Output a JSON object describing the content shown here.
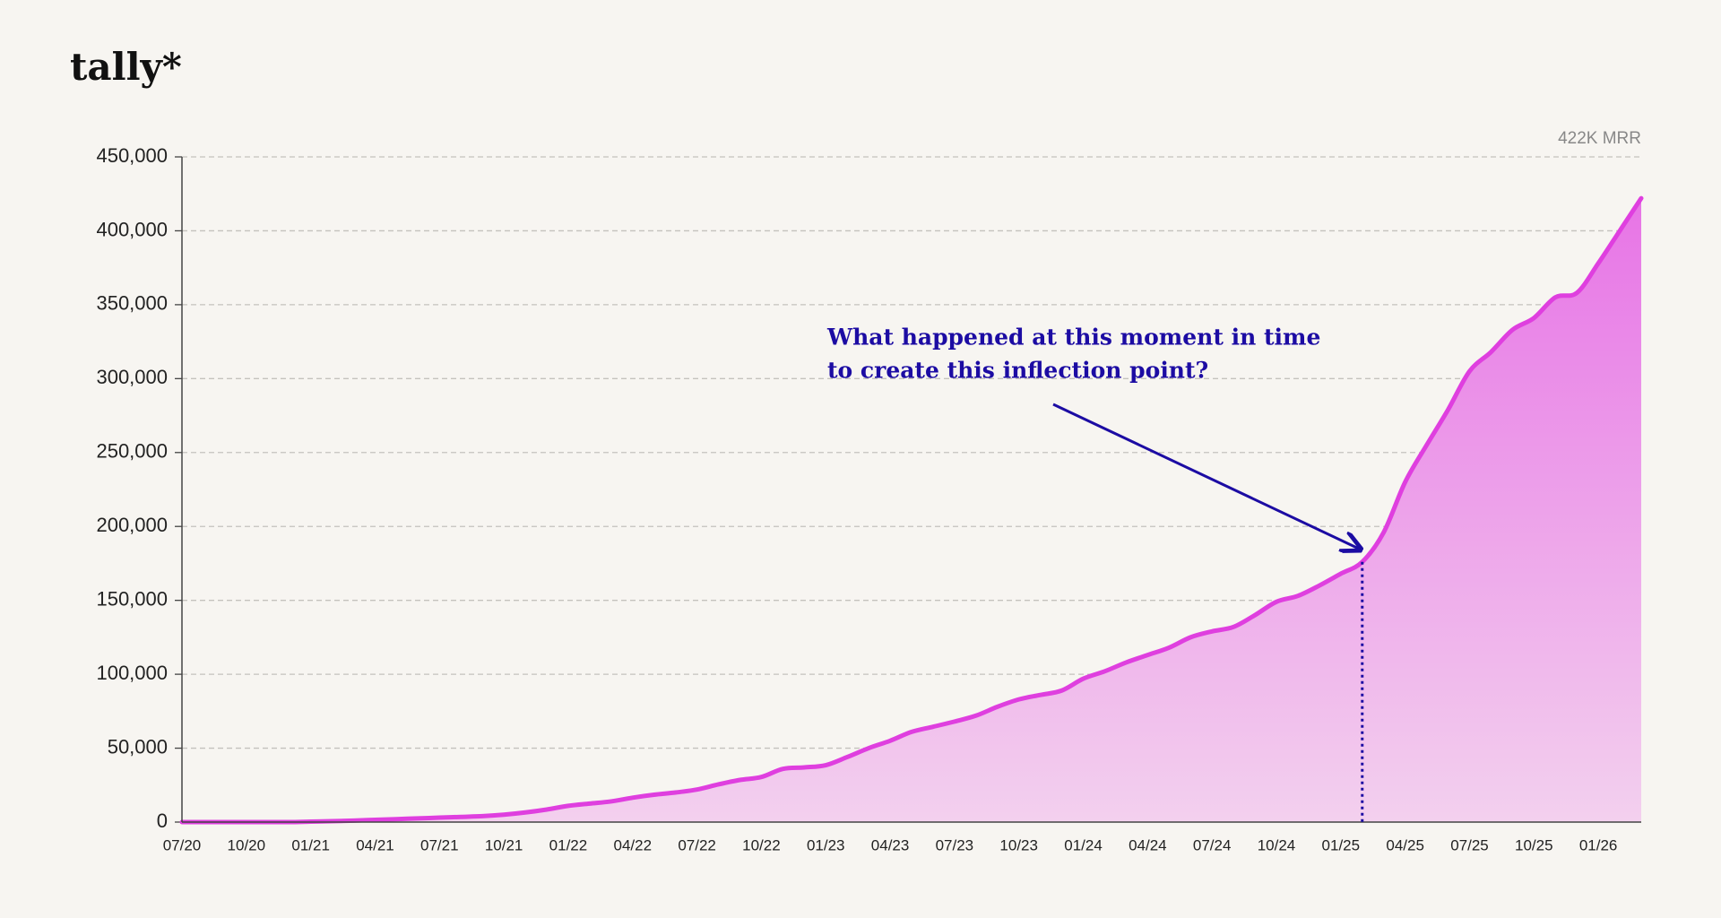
{
  "title": "tally*",
  "chart_data": {
    "type": "area",
    "corner_label": "422K MRR",
    "annotation": [
      "What happened at this moment in time",
      "to create this inflection point?"
    ],
    "categories": [
      "07/20",
      null,
      null,
      "10/20",
      null,
      null,
      "01/21",
      null,
      null,
      "04/21",
      null,
      null,
      "07/21",
      null,
      null,
      "10/21",
      null,
      null,
      "01/22",
      null,
      null,
      "04/22",
      null,
      null,
      "07/22",
      null,
      null,
      "10/22",
      null,
      null,
      "01/23",
      null,
      null,
      "04/23",
      null,
      null,
      "07/23",
      null,
      null,
      "10/23",
      null,
      null,
      "01/24",
      null,
      null,
      "04/24",
      null,
      null,
      "07/24",
      null,
      null,
      "10/24",
      null,
      null,
      "01/25",
      null,
      null,
      "04/25",
      null,
      null,
      "07/25",
      null,
      null,
      "10/25",
      null,
      null,
      "01/26",
      null,
      null
    ],
    "series": [
      {
        "name": "MRR",
        "color": "#df3fdf",
        "values": [
          0,
          0,
          0,
          0,
          0,
          0,
          300,
          600,
          1000,
          1500,
          2000,
          2500,
          3000,
          3500,
          4000,
          5000,
          6500,
          8500,
          11000,
          12500,
          14000,
          16500,
          18500,
          20000,
          22000,
          25500,
          28500,
          30500,
          36000,
          37000,
          38500,
          44000,
          50000,
          55000,
          61000,
          64500,
          68000,
          72000,
          78000,
          83000,
          86000,
          89000,
          97000,
          102000,
          108000,
          113000,
          118000,
          125000,
          129000,
          132000,
          140000,
          149000,
          153000,
          160000,
          168000,
          176000,
          196000,
          230000,
          255000,
          279000,
          305000,
          318000,
          333000,
          341000,
          355000,
          358000,
          378000,
          400000,
          422000
        ]
      }
    ],
    "ylim": [
      0,
      450000
    ],
    "yticks": [
      0,
      {
        "value": 50000,
        "label": "50,000"
      },
      {
        "value": 100000,
        "label": "100,000"
      },
      {
        "value": 150000,
        "label": "150,000"
      },
      {
        "value": 200000,
        "label": "200,000"
      },
      {
        "value": 250000,
        "label": "250,000"
      },
      {
        "value": 300000,
        "label": "300,000"
      },
      {
        "value": 350000,
        "label": "350,000"
      },
      {
        "value": 400000,
        "label": "400,000"
      },
      {
        "value": 450000,
        "label": "450,000"
      }
    ],
    "grid": true
  }
}
